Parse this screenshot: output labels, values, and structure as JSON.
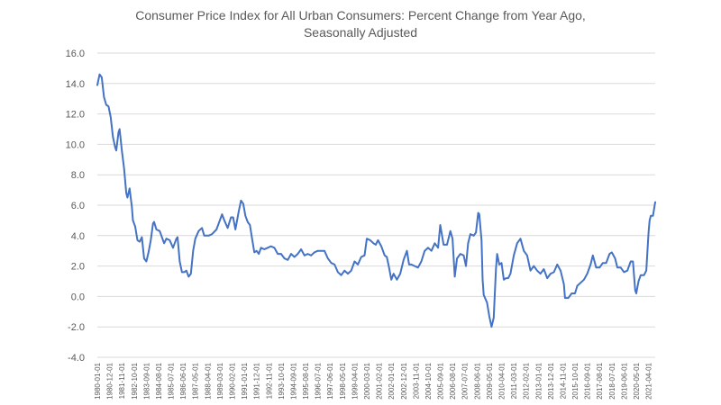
{
  "chart_data": {
    "type": "line",
    "title": "Consumer Price Index for All Urban Consumers:  Percent Change from Year Ago,",
    "subtitle": "Seasonally Adjusted",
    "xlabel": "",
    "ylabel": "",
    "ylim": [
      -4.0,
      16.0
    ],
    "yticks": [
      "-4.0",
      "-2.0",
      "0.0",
      "2.0",
      "4.0",
      "6.0",
      "8.0",
      "10.0",
      "12.0",
      "14.0",
      "16.0"
    ],
    "xlim": [
      "1980-01-01",
      "2021-10-01"
    ],
    "xticks": [
      "1980-01-01",
      "1980-12-01",
      "1981-11-01",
      "1982-10-01",
      "1983-09-01",
      "1984-08-01",
      "1985-07-01",
      "1986-06-01",
      "1987-05-01",
      "1988-04-01",
      "1989-03-01",
      "1990-02-01",
      "1991-01-01",
      "1991-12-01",
      "1992-11-01",
      "1993-10-01",
      "1994-09-01",
      "1995-08-01",
      "1996-07-01",
      "1997-06-01",
      "1998-05-01",
      "1999-04-01",
      "2000-03-01",
      "2001-02-01",
      "2002-01-01",
      "2002-12-01",
      "2003-11-01",
      "2004-10-01",
      "2005-09-01",
      "2006-08-01",
      "2007-07-01",
      "2008-06-01",
      "2009-05-01",
      "2010-04-01",
      "2011-03-01",
      "2012-02-01",
      "2013-01-01",
      "2013-12-01",
      "2014-11-01",
      "2015-10-01",
      "2016-09-01",
      "2017-08-01",
      "2018-07-01",
      "2019-06-01",
      "2020-05-01",
      "2021-04-01"
    ],
    "grid": true,
    "series": [
      {
        "name": "",
        "color": "#4472c4",
        "points": [
          [
            "1980-01-01",
            13.9
          ],
          [
            "1980-03-01",
            14.6
          ],
          [
            "1980-05-01",
            14.4
          ],
          [
            "1980-07-01",
            13.1
          ],
          [
            "1980-09-01",
            12.6
          ],
          [
            "1980-11-01",
            12.5
          ],
          [
            "1981-01-01",
            11.8
          ],
          [
            "1981-03-01",
            10.5
          ],
          [
            "1981-05-01",
            9.8
          ],
          [
            "1981-06-01",
            9.6
          ],
          [
            "1981-08-01",
            10.8
          ],
          [
            "1981-09-01",
            11.0
          ],
          [
            "1981-11-01",
            9.6
          ],
          [
            "1982-01-01",
            8.4
          ],
          [
            "1982-03-01",
            6.8
          ],
          [
            "1982-04-01",
            6.5
          ],
          [
            "1982-06-01",
            7.1
          ],
          [
            "1982-08-01",
            5.9
          ],
          [
            "1982-09-01",
            5.0
          ],
          [
            "1982-11-01",
            4.6
          ],
          [
            "1983-01-01",
            3.7
          ],
          [
            "1983-03-01",
            3.6
          ],
          [
            "1983-05-01",
            3.9
          ],
          [
            "1983-07-01",
            2.5
          ],
          [
            "1983-09-01",
            2.3
          ],
          [
            "1983-11-01",
            2.9
          ],
          [
            "1984-01-01",
            3.7
          ],
          [
            "1984-03-01",
            4.8
          ],
          [
            "1984-04-01",
            4.9
          ],
          [
            "1984-06-01",
            4.4
          ],
          [
            "1984-09-01",
            4.3
          ],
          [
            "1985-01-01",
            3.5
          ],
          [
            "1985-03-01",
            3.8
          ],
          [
            "1985-06-01",
            3.7
          ],
          [
            "1985-09-01",
            3.2
          ],
          [
            "1985-12-01",
            3.8
          ],
          [
            "1986-01-01",
            3.9
          ],
          [
            "1986-03-01",
            2.3
          ],
          [
            "1986-05-01",
            1.6
          ],
          [
            "1986-07-01",
            1.6
          ],
          [
            "1986-09-01",
            1.7
          ],
          [
            "1986-11-01",
            1.3
          ],
          [
            "1987-01-01",
            1.5
          ],
          [
            "1987-03-01",
            3.0
          ],
          [
            "1987-05-01",
            3.8
          ],
          [
            "1987-08-01",
            4.3
          ],
          [
            "1987-11-01",
            4.5
          ],
          [
            "1988-01-01",
            4.0
          ],
          [
            "1988-05-01",
            4.0
          ],
          [
            "1988-08-01",
            4.1
          ],
          [
            "1988-12-01",
            4.4
          ],
          [
            "1989-03-01",
            5.0
          ],
          [
            "1989-05-01",
            5.4
          ],
          [
            "1989-07-01",
            5.0
          ],
          [
            "1989-10-01",
            4.5
          ],
          [
            "1990-01-01",
            5.2
          ],
          [
            "1990-03-01",
            5.2
          ],
          [
            "1990-05-01",
            4.4
          ],
          [
            "1990-08-01",
            5.6
          ],
          [
            "1990-10-01",
            6.3
          ],
          [
            "1990-12-01",
            6.1
          ],
          [
            "1991-02-01",
            5.3
          ],
          [
            "1991-04-01",
            4.9
          ],
          [
            "1991-06-01",
            4.7
          ],
          [
            "1991-08-01",
            3.8
          ],
          [
            "1991-10-01",
            2.9
          ],
          [
            "1991-12-01",
            3.0
          ],
          [
            "1992-02-01",
            2.8
          ],
          [
            "1992-04-01",
            3.2
          ],
          [
            "1992-07-01",
            3.1
          ],
          [
            "1992-10-01",
            3.2
          ],
          [
            "1993-01-01",
            3.3
          ],
          [
            "1993-04-01",
            3.2
          ],
          [
            "1993-07-01",
            2.8
          ],
          [
            "1993-10-01",
            2.8
          ],
          [
            "1994-01-01",
            2.5
          ],
          [
            "1994-04-01",
            2.4
          ],
          [
            "1994-07-01",
            2.8
          ],
          [
            "1994-10-01",
            2.6
          ],
          [
            "1995-01-01",
            2.8
          ],
          [
            "1995-04-01",
            3.1
          ],
          [
            "1995-07-01",
            2.7
          ],
          [
            "1995-10-01",
            2.8
          ],
          [
            "1996-01-01",
            2.7
          ],
          [
            "1996-04-01",
            2.9
          ],
          [
            "1996-07-01",
            3.0
          ],
          [
            "1996-10-01",
            3.0
          ],
          [
            "1997-01-01",
            3.0
          ],
          [
            "1997-04-01",
            2.5
          ],
          [
            "1997-07-01",
            2.2
          ],
          [
            "1997-10-01",
            2.1
          ],
          [
            "1998-01-01",
            1.6
          ],
          [
            "1998-04-01",
            1.4
          ],
          [
            "1998-07-01",
            1.7
          ],
          [
            "1998-10-01",
            1.5
          ],
          [
            "1999-01-01",
            1.7
          ],
          [
            "1999-04-01",
            2.3
          ],
          [
            "1999-07-01",
            2.1
          ],
          [
            "1999-10-01",
            2.6
          ],
          [
            "2000-01-01",
            2.7
          ],
          [
            "2000-03-01",
            3.8
          ],
          [
            "2000-06-01",
            3.7
          ],
          [
            "2000-09-01",
            3.5
          ],
          [
            "2000-11-01",
            3.4
          ],
          [
            "2001-01-01",
            3.7
          ],
          [
            "2001-04-01",
            3.3
          ],
          [
            "2001-07-01",
            2.7
          ],
          [
            "2001-09-01",
            2.6
          ],
          [
            "2001-11-01",
            1.9
          ],
          [
            "2002-01-01",
            1.1
          ],
          [
            "2002-03-01",
            1.5
          ],
          [
            "2002-06-01",
            1.1
          ],
          [
            "2002-09-01",
            1.5
          ],
          [
            "2002-12-01",
            2.4
          ],
          [
            "2003-03-01",
            3.0
          ],
          [
            "2003-05-01",
            2.1
          ],
          [
            "2003-07-01",
            2.1
          ],
          [
            "2003-10-01",
            2.0
          ],
          [
            "2004-01-01",
            1.9
          ],
          [
            "2004-04-01",
            2.3
          ],
          [
            "2004-07-01",
            3.0
          ],
          [
            "2004-10-01",
            3.2
          ],
          [
            "2005-01-01",
            3.0
          ],
          [
            "2005-04-01",
            3.5
          ],
          [
            "2005-07-01",
            3.2
          ],
          [
            "2005-09-01",
            4.7
          ],
          [
            "2005-12-01",
            3.4
          ],
          [
            "2006-03-01",
            3.4
          ],
          [
            "2006-06-01",
            4.3
          ],
          [
            "2006-08-01",
            3.8
          ],
          [
            "2006-10-01",
            1.3
          ],
          [
            "2006-12-01",
            2.5
          ],
          [
            "2007-03-01",
            2.8
          ],
          [
            "2007-06-01",
            2.7
          ],
          [
            "2007-08-01",
            2.0
          ],
          [
            "2007-10-01",
            3.5
          ],
          [
            "2007-12-01",
            4.1
          ],
          [
            "2008-03-01",
            4.0
          ],
          [
            "2008-05-01",
            4.2
          ],
          [
            "2008-07-01",
            5.5
          ],
          [
            "2008-08-01",
            5.4
          ],
          [
            "2008-10-01",
            3.7
          ],
          [
            "2008-11-01",
            1.1
          ],
          [
            "2008-12-01",
            0.1
          ],
          [
            "2009-03-01",
            -0.4
          ],
          [
            "2009-05-01",
            -1.3
          ],
          [
            "2009-07-01",
            -2.0
          ],
          [
            "2009-09-01",
            -1.4
          ],
          [
            "2009-11-01",
            1.8
          ],
          [
            "2009-12-01",
            2.8
          ],
          [
            "2010-02-01",
            2.1
          ],
          [
            "2010-04-01",
            2.2
          ],
          [
            "2010-06-01",
            1.1
          ],
          [
            "2010-08-01",
            1.2
          ],
          [
            "2010-10-01",
            1.2
          ],
          [
            "2010-12-01",
            1.5
          ],
          [
            "2011-03-01",
            2.7
          ],
          [
            "2011-06-01",
            3.5
          ],
          [
            "2011-09-01",
            3.8
          ],
          [
            "2011-12-01",
            3.0
          ],
          [
            "2012-03-01",
            2.7
          ],
          [
            "2012-06-01",
            1.7
          ],
          [
            "2012-09-01",
            2.0
          ],
          [
            "2012-12-01",
            1.7
          ],
          [
            "2013-03-01",
            1.5
          ],
          [
            "2013-06-01",
            1.8
          ],
          [
            "2013-09-01",
            1.2
          ],
          [
            "2013-12-01",
            1.5
          ],
          [
            "2014-03-01",
            1.6
          ],
          [
            "2014-06-01",
            2.1
          ],
          [
            "2014-09-01",
            1.7
          ],
          [
            "2014-12-01",
            0.8
          ],
          [
            "2015-01-01",
            -0.1
          ],
          [
            "2015-04-01",
            -0.1
          ],
          [
            "2015-07-01",
            0.2
          ],
          [
            "2015-10-01",
            0.2
          ],
          [
            "2015-12-01",
            0.7
          ],
          [
            "2016-03-01",
            0.9
          ],
          [
            "2016-06-01",
            1.1
          ],
          [
            "2016-09-01",
            1.5
          ],
          [
            "2016-12-01",
            2.1
          ],
          [
            "2017-02-01",
            2.7
          ],
          [
            "2017-05-01",
            1.9
          ],
          [
            "2017-08-01",
            1.9
          ],
          [
            "2017-11-01",
            2.2
          ],
          [
            "2018-02-01",
            2.2
          ],
          [
            "2018-05-01",
            2.8
          ],
          [
            "2018-07-01",
            2.9
          ],
          [
            "2018-10-01",
            2.5
          ],
          [
            "2018-12-01",
            1.9
          ],
          [
            "2019-03-01",
            1.9
          ],
          [
            "2019-06-01",
            1.6
          ],
          [
            "2019-09-01",
            1.7
          ],
          [
            "2019-12-01",
            2.3
          ],
          [
            "2020-02-01",
            2.3
          ],
          [
            "2020-04-01",
            0.4
          ],
          [
            "2020-05-01",
            0.2
          ],
          [
            "2020-07-01",
            1.0
          ],
          [
            "2020-09-01",
            1.4
          ],
          [
            "2020-12-01",
            1.4
          ],
          [
            "2021-02-01",
            1.7
          ],
          [
            "2021-04-01",
            4.2
          ],
          [
            "2021-05-01",
            5.0
          ],
          [
            "2021-06-01",
            5.3
          ],
          [
            "2021-08-01",
            5.3
          ],
          [
            "2021-10-01",
            6.2
          ]
        ]
      }
    ]
  }
}
